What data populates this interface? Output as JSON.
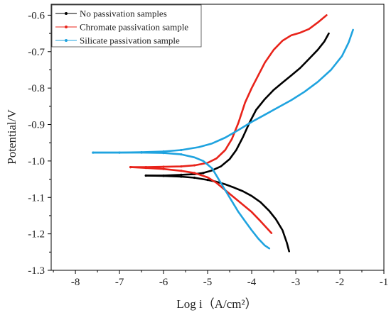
{
  "chart_data": {
    "type": "line",
    "xlabel": "Log i（A/cm²）",
    "ylabel": "Potential/V",
    "xlim": [
      -8.55,
      -1
    ],
    "ylim": [
      -1.3,
      -0.57
    ],
    "y_inverted": true,
    "grid": false,
    "legend_position": "top-left",
    "x_ticks": [
      -8,
      -7,
      -6,
      -5,
      -4,
      -3,
      -2,
      -1
    ],
    "x_tick_labels": [
      "-8",
      "-7",
      "-6",
      "-5",
      "-4",
      "-3",
      "-2",
      "-1"
    ],
    "y_ticks": [
      -0.6,
      -0.7,
      -0.8,
      -0.9,
      -1.0,
      -1.1,
      -1.2,
      -1.3
    ],
    "y_tick_labels": [
      "-0.6",
      "-0.7",
      "-0.8",
      "-0.9",
      "-1.0",
      "-1.1",
      "-1.2",
      "-1.3"
    ],
    "series": [
      {
        "name": "No passivation samples",
        "color": "#000000",
        "branches": [
          {
            "x": [
              -6.4,
              -6.0,
              -5.6,
              -5.3,
              -5.1,
              -4.9,
              -4.7,
              -4.5,
              -4.35,
              -4.2,
              -4.05,
              -3.9,
              -3.7,
              -3.5,
              -3.3,
              -3.1,
              -2.9,
              -2.7,
              -2.5,
              -2.35,
              -2.25
            ],
            "y": [
              -1.04,
              -1.04,
              -1.038,
              -1.036,
              -1.033,
              -1.026,
              -1.015,
              -0.995,
              -0.97,
              -0.935,
              -0.895,
              -0.86,
              -0.83,
              -0.805,
              -0.785,
              -0.765,
              -0.745,
              -0.72,
              -0.695,
              -0.672,
              -0.65
            ]
          },
          {
            "x": [
              -6.4,
              -6.0,
              -5.6,
              -5.3,
              -5.0,
              -4.8,
              -4.6,
              -4.4,
              -4.2,
              -4.0,
              -3.8,
              -3.6,
              -3.45,
              -3.3,
              -3.2,
              -3.15
            ],
            "y": [
              -1.04,
              -1.041,
              -1.043,
              -1.046,
              -1.052,
              -1.057,
              -1.064,
              -1.073,
              -1.083,
              -1.096,
              -1.113,
              -1.137,
              -1.16,
              -1.19,
              -1.225,
              -1.248
            ]
          }
        ]
      },
      {
        "name": "Chromate passivation sample",
        "color": "#e8231a",
        "branches": [
          {
            "x": [
              -6.75,
              -6.4,
              -6.0,
              -5.6,
              -5.3,
              -5.0,
              -4.8,
              -4.6,
              -4.45,
              -4.3,
              -4.15,
              -4.0,
              -3.85,
              -3.7,
              -3.5,
              -3.3,
              -3.1,
              -2.9,
              -2.7,
              -2.5,
              -2.3
            ],
            "y": [
              -1.017,
              -1.017,
              -1.016,
              -1.015,
              -1.012,
              -1.005,
              -0.993,
              -0.97,
              -0.94,
              -0.895,
              -0.84,
              -0.8,
              -0.765,
              -0.73,
              -0.695,
              -0.67,
              -0.655,
              -0.648,
              -0.638,
              -0.62,
              -0.6
            ]
          },
          {
            "x": [
              -6.75,
              -6.4,
              -6.0,
              -5.6,
              -5.3,
              -5.0,
              -4.8,
              -4.6,
              -4.4,
              -4.2,
              -4.0,
              -3.8,
              -3.65,
              -3.55
            ],
            "y": [
              -1.017,
              -1.019,
              -1.022,
              -1.027,
              -1.033,
              -1.045,
              -1.06,
              -1.08,
              -1.1,
              -1.12,
              -1.14,
              -1.165,
              -1.185,
              -1.198
            ]
          }
        ]
      },
      {
        "name": "Silicate passivation sample",
        "color": "#1fa3df",
        "branches": [
          {
            "x": [
              -7.6,
              -7.0,
              -6.5,
              -6.0,
              -5.6,
              -5.2,
              -4.9,
              -4.6,
              -4.3,
              -4.0,
              -3.7,
              -3.4,
              -3.1,
              -2.8,
              -2.5,
              -2.2,
              -1.95,
              -1.8,
              -1.7
            ],
            "y": [
              -0.977,
              -0.977,
              -0.976,
              -0.974,
              -0.97,
              -0.962,
              -0.952,
              -0.936,
              -0.915,
              -0.893,
              -0.873,
              -0.853,
              -0.833,
              -0.81,
              -0.783,
              -0.75,
              -0.712,
              -0.675,
              -0.64
            ]
          },
          {
            "x": [
              -7.6,
              -7.0,
              -6.5,
              -6.0,
              -5.6,
              -5.3,
              -5.1,
              -4.9,
              -4.75,
              -4.6,
              -4.45,
              -4.3,
              -4.15,
              -4.0,
              -3.85,
              -3.7,
              -3.6
            ],
            "y": [
              -0.977,
              -0.977,
              -0.977,
              -0.978,
              -0.982,
              -0.99,
              -1.0,
              -1.02,
              -1.05,
              -1.08,
              -1.11,
              -1.14,
              -1.165,
              -1.19,
              -1.213,
              -1.232,
              -1.24
            ]
          }
        ]
      }
    ]
  }
}
